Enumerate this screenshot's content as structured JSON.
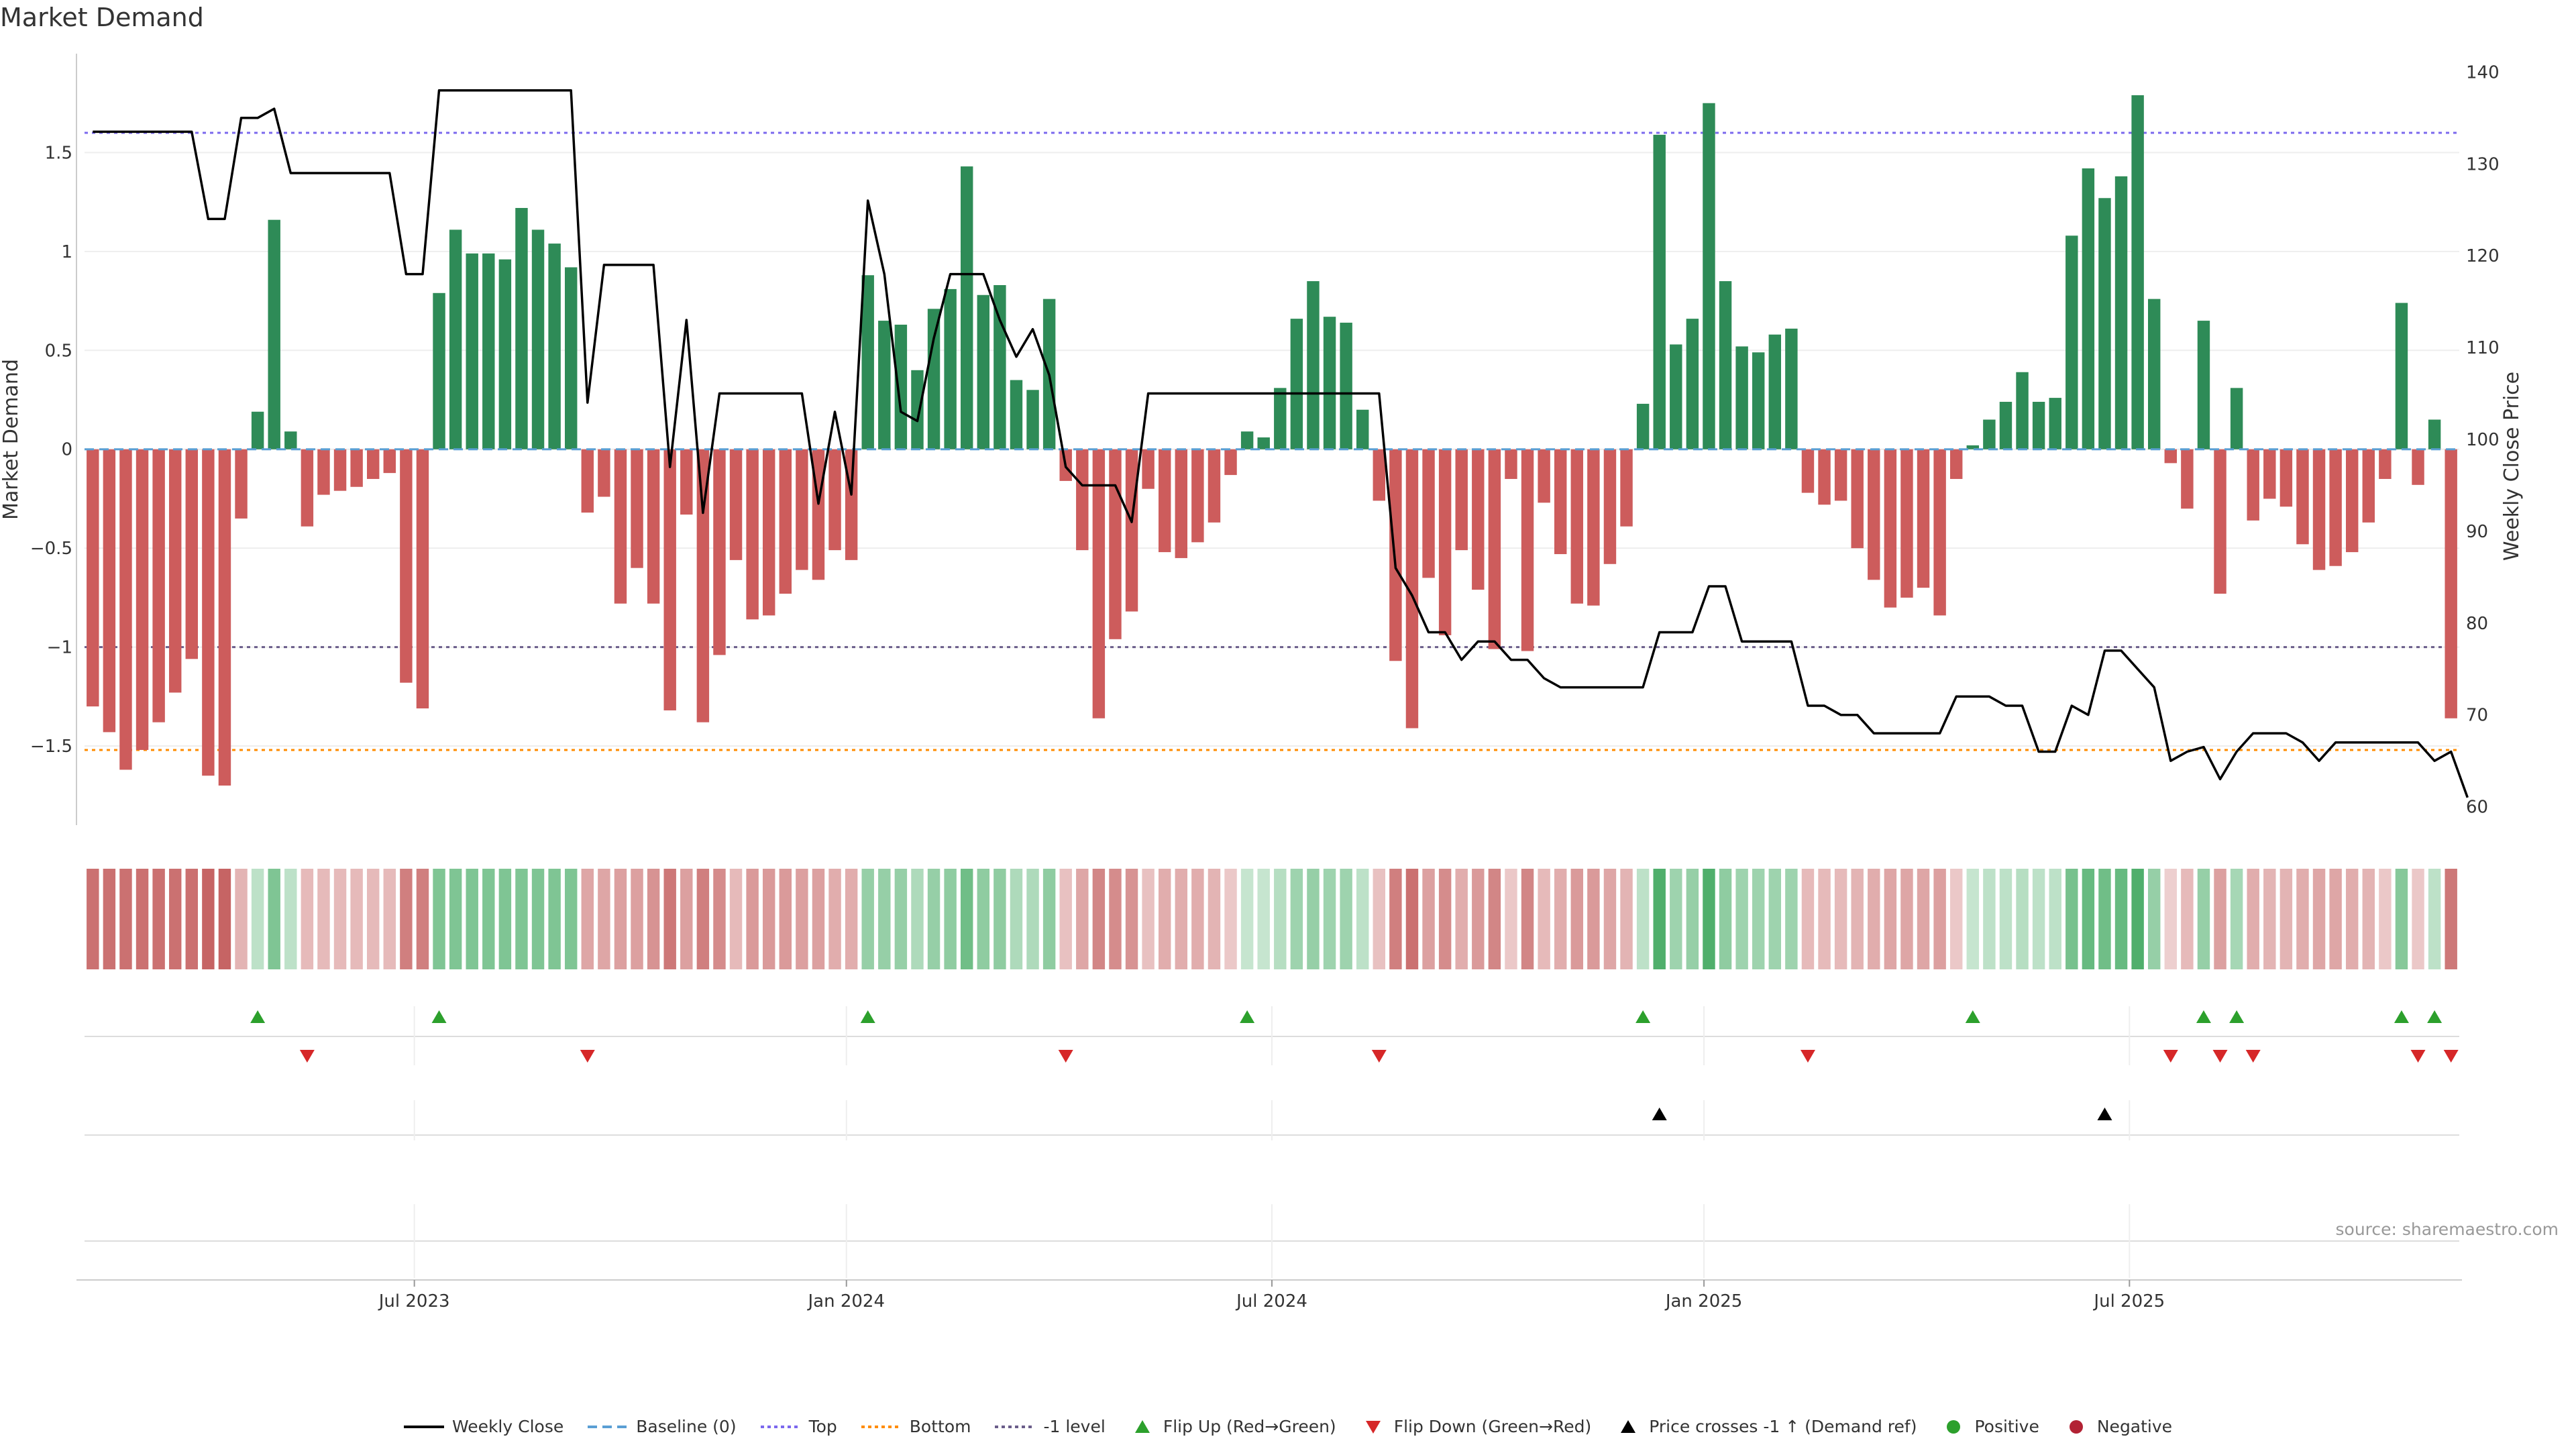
{
  "title": "Market Demand",
  "source": "source: sharemaestro.com",
  "colors": {
    "positive": "#2e8b57",
    "negative": "#cd5c5c",
    "price": "#000000",
    "top": "#7b68ee",
    "bottom": "#ff8c00",
    "minus1": "#6a5d8a",
    "flip_up": "#2ca02c",
    "flip_down": "#d62728",
    "cross": "#000000",
    "pos_dot": "#2ca02c",
    "neg_dot": "#b22234"
  },
  "chart_data": {
    "type": "bar",
    "title": "Market Demand",
    "ylabel": "Market Demand",
    "y2label": "Weekly Close Price",
    "ylim": [
      -1.9,
      2.0
    ],
    "y2lim": [
      58,
      142
    ],
    "y_ticks": [
      -1.5,
      -1,
      -0.5,
      0,
      0.5,
      1,
      1.5
    ],
    "y_tick_labels": [
      "−1.5",
      "−1",
      "−0.5",
      "0",
      "0.5",
      "1",
      "1.5"
    ],
    "y2_ticks": [
      60,
      70,
      80,
      90,
      100,
      110,
      120,
      130,
      140
    ],
    "y2_tick_labels": [
      "60",
      "70",
      "80",
      "90",
      "100",
      "110",
      "120",
      "130",
      "140"
    ],
    "x_ticks": [
      {
        "week": 20,
        "label": "Jul 2023"
      },
      {
        "week": 46.2,
        "label": "Jan 2024"
      },
      {
        "week": 72,
        "label": "Jul 2024"
      },
      {
        "week": 98.2,
        "label": "Jan 2025"
      },
      {
        "week": 124,
        "label": "Jul 2025"
      }
    ],
    "levels": {
      "top": 1.6,
      "bottom": -1.52,
      "minus_one": -1.0,
      "baseline": 0
    },
    "demand": [
      -1.3,
      -1.43,
      -1.62,
      -1.52,
      -1.38,
      -1.23,
      -1.06,
      -1.65,
      -1.7,
      -0.35,
      0.19,
      1.16,
      0.09,
      -0.39,
      -0.23,
      -0.21,
      -0.19,
      -0.15,
      -0.12,
      -1.18,
      -1.31,
      0.79,
      1.11,
      0.99,
      0.99,
      0.96,
      1.22,
      1.11,
      1.04,
      0.92,
      -0.32,
      -0.24,
      -0.78,
      -0.6,
      -0.78,
      -1.32,
      -0.33,
      -1.38,
      -1.04,
      -0.56,
      -0.86,
      -0.84,
      -0.73,
      -0.61,
      -0.66,
      -0.51,
      -0.56,
      0.88,
      0.65,
      0.63,
      0.4,
      0.71,
      0.81,
      1.43,
      0.78,
      0.83,
      0.35,
      0.3,
      0.76,
      -0.16,
      -0.51,
      -1.36,
      -0.96,
      -0.82,
      -0.2,
      -0.52,
      -0.55,
      -0.47,
      -0.37,
      -0.13,
      0.09,
      0.06,
      0.31,
      0.66,
      0.85,
      0.67,
      0.64,
      0.2,
      -0.26,
      -1.07,
      -1.41,
      -0.65,
      -0.94,
      -0.51,
      -0.71,
      -1.01,
      -0.15,
      -1.02,
      -0.27,
      -0.53,
      -0.78,
      -0.79,
      -0.58,
      -0.39,
      0.23,
      1.59,
      0.53,
      0.66,
      1.75,
      0.85,
      0.52,
      0.49,
      0.58,
      0.61,
      -0.22,
      -0.28,
      -0.26,
      -0.5,
      -0.66,
      -0.8,
      -0.75,
      -0.7,
      -0.84,
      -0.15,
      0.02,
      0.15,
      0.24,
      0.39,
      0.24,
      0.26,
      1.08,
      1.42,
      1.27,
      1.38,
      1.79,
      0.76,
      -0.07,
      -0.3,
      0.65,
      -0.73,
      0.31,
      -0.36,
      -0.25,
      -0.29,
      -0.48,
      -0.61,
      -0.59,
      -0.52,
      -0.37,
      -0.15,
      0.74,
      -0.18,
      0.15,
      -1.36
    ],
    "price": [
      133.5,
      133.5,
      133.5,
      133.5,
      133.5,
      133.5,
      133.5,
      124,
      124,
      135,
      135,
      136,
      129,
      129,
      129,
      129,
      129,
      129,
      129,
      118,
      118,
      138,
      138,
      138,
      138,
      138,
      138,
      138,
      138,
      138,
      104,
      119,
      119,
      119,
      119,
      97,
      113,
      92,
      105,
      105,
      105,
      105,
      105,
      105,
      93,
      103,
      94,
      126,
      118,
      103,
      102,
      111,
      118,
      118,
      118,
      113,
      109,
      112,
      107,
      97,
      95,
      95,
      95,
      91,
      105,
      105,
      105,
      105,
      105,
      105,
      105,
      105,
      105,
      105,
      105,
      105,
      105,
      105,
      105,
      86,
      83,
      79,
      79,
      76,
      78,
      78,
      76,
      76,
      74,
      73,
      73,
      73,
      73,
      73,
      73,
      79,
      79,
      79,
      84,
      84,
      78,
      78,
      78,
      78,
      71,
      71,
      70,
      70,
      68,
      68,
      68,
      68,
      68,
      72,
      72,
      72,
      71,
      71,
      66,
      66,
      71,
      70,
      77,
      77,
      75,
      73,
      65,
      66,
      66.5,
      63,
      66,
      68,
      68,
      68,
      67,
      65,
      67,
      67,
      67,
      67,
      67,
      67,
      65,
      66,
      61
    ],
    "heat": [
      -0.75,
      -0.75,
      -0.75,
      -0.75,
      -0.75,
      -0.75,
      -0.75,
      -0.85,
      -0.85,
      -0.25,
      0.15,
      0.55,
      0.15,
      -0.2,
      -0.2,
      -0.2,
      -0.2,
      -0.2,
      -0.2,
      -0.65,
      -0.65,
      0.55,
      0.55,
      0.55,
      0.55,
      0.55,
      0.55,
      0.55,
      0.55,
      0.55,
      -0.35,
      -0.35,
      -0.4,
      -0.4,
      -0.5,
      -0.7,
      -0.4,
      -0.65,
      -0.55,
      -0.2,
      -0.45,
      -0.45,
      -0.45,
      -0.4,
      -0.4,
      -0.3,
      -0.3,
      0.4,
      0.4,
      0.4,
      0.25,
      0.4,
      0.45,
      0.65,
      0.45,
      0.45,
      0.25,
      0.25,
      0.45,
      -0.15,
      -0.35,
      -0.6,
      -0.55,
      -0.5,
      -0.15,
      -0.3,
      -0.3,
      -0.3,
      -0.25,
      -0.1,
      0.1,
      0.1,
      0.2,
      0.35,
      0.4,
      0.35,
      0.35,
      0.15,
      -0.15,
      -0.65,
      -0.75,
      -0.4,
      -0.55,
      -0.3,
      -0.45,
      -0.6,
      -0.1,
      -0.6,
      -0.2,
      -0.3,
      -0.45,
      -0.45,
      -0.35,
      -0.25,
      0.15,
      0.85,
      0.35,
      0.4,
      0.85,
      0.45,
      0.35,
      0.35,
      0.35,
      0.35,
      -0.2,
      -0.2,
      -0.2,
      -0.25,
      -0.3,
      -0.35,
      -0.35,
      -0.35,
      -0.4,
      -0.1,
      0.1,
      0.15,
      0.15,
      0.2,
      0.15,
      0.15,
      0.6,
      0.7,
      0.65,
      0.7,
      0.85,
      0.4,
      -0.05,
      -0.2,
      0.4,
      -0.4,
      0.3,
      -0.3,
      -0.25,
      -0.25,
      -0.3,
      -0.35,
      -0.35,
      -0.3,
      -0.25,
      -0.1,
      0.5,
      -0.1,
      0.15,
      -0.7
    ],
    "flip_up_weeks": [
      10,
      21,
      47,
      70,
      94,
      114,
      128,
      130,
      140,
      142
    ],
    "flip_down_weeks": [
      13,
      30,
      59,
      78,
      104,
      126,
      129,
      131,
      141,
      143
    ],
    "price_cross_weeks": [
      95,
      122
    ]
  },
  "legend": [
    {
      "icon": "weekly-close-line",
      "label": "Weekly Close"
    },
    {
      "icon": "baseline-dash",
      "label": "Baseline (0)"
    },
    {
      "icon": "top-dot-line",
      "label": "Top"
    },
    {
      "icon": "bottom-dot-line",
      "label": "Bottom"
    },
    {
      "icon": "minus-one-dot-line",
      "label": "-1 level"
    },
    {
      "icon": "flip-up-triangle",
      "label": "Flip Up (Red→Green)"
    },
    {
      "icon": "flip-down-triangle",
      "label": "Flip Down (Green→Red)"
    },
    {
      "icon": "price-cross-triangle",
      "label": "Price crosses -1 ↑ (Demand ref)"
    },
    {
      "icon": "positive-dot",
      "label": "Positive"
    },
    {
      "icon": "negative-dot",
      "label": "Negative"
    }
  ]
}
